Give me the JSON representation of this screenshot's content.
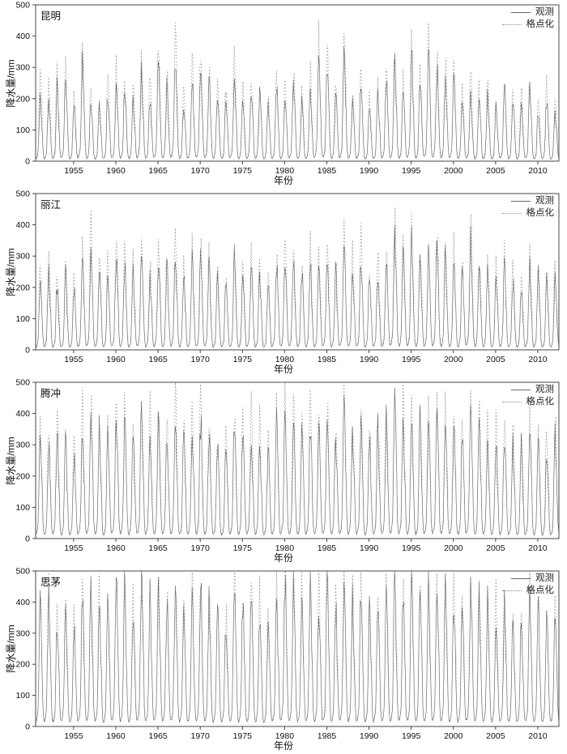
{
  "figure_title": "",
  "labels": {
    "xlabel": "年份",
    "ylabel": "降水量/mm",
    "legend_obs": "观测",
    "legend_grid": "格点化"
  },
  "colors": {
    "observed": "#555555",
    "gridded": "#969696",
    "axis": "#333333",
    "text": "#111111"
  },
  "chart_data": [
    {
      "type": "line",
      "station": "昆明",
      "xlabel": "年份",
      "ylabel": "降水量/mm",
      "ylim": [
        0,
        500
      ],
      "yticks": [
        0,
        100,
        200,
        300,
        400,
        500
      ],
      "xticks": [
        1955,
        1960,
        1965,
        1970,
        1975,
        1980,
        1985,
        1990,
        1995,
        2000,
        2005,
        2010
      ],
      "x_range": [
        1951,
        2013
      ],
      "legend": [
        "观测",
        "格点化"
      ],
      "grid": false,
      "legend_position": "top-right",
      "monthly_profile": [
        0.04,
        0.05,
        0.08,
        0.14,
        0.42,
        0.78,
        1.0,
        0.88,
        0.62,
        0.42,
        0.16,
        0.06
      ],
      "series": [
        {
          "name": "观测",
          "style": "solid",
          "color": "#555555",
          "annual_peaks": [
            210,
            190,
            230,
            265,
            180,
            340,
            205,
            170,
            220,
            250,
            235,
            190,
            280,
            210,
            320,
            235,
            335,
            180,
            260,
            300,
            250,
            220,
            200,
            280,
            190,
            230,
            210,
            170,
            240,
            205,
            260,
            185,
            230,
            330,
            300,
            210,
            340,
            190,
            235,
            165,
            210,
            250,
            300,
            230,
            335,
            260,
            340,
            305,
            280,
            250,
            200,
            230,
            185,
            210,
            165,
            240,
            200,
            185,
            230,
            160,
            205,
            155
          ]
        },
        {
          "name": "格点化",
          "style": "dotted",
          "color": "#969696",
          "annual_peaks": [
            265,
            230,
            280,
            300,
            210,
            395,
            240,
            200,
            260,
            300,
            280,
            230,
            330,
            250,
            380,
            280,
            400,
            220,
            310,
            355,
            300,
            260,
            240,
            330,
            230,
            280,
            250,
            210,
            290,
            250,
            310,
            225,
            280,
            395,
            360,
            255,
            410,
            230,
            285,
            200,
            255,
            300,
            360,
            280,
            400,
            315,
            405,
            365,
            340,
            300,
            245,
            280,
            225,
            255,
            205,
            290,
            245,
            225,
            280,
            200,
            250,
            190
          ]
        }
      ]
    },
    {
      "type": "line",
      "station": "丽江",
      "xlabel": "年份",
      "ylabel": "降水量/mm",
      "ylim": [
        0,
        500
      ],
      "yticks": [
        0,
        100,
        200,
        300,
        400,
        500
      ],
      "xticks": [
        1955,
        1960,
        1965,
        1970,
        1975,
        1980,
        1985,
        1990,
        1995,
        2000,
        2005,
        2010
      ],
      "x_range": [
        1951,
        2013
      ],
      "legend": [
        "观测",
        "格点化"
      ],
      "grid": false,
      "legend_position": "top-right",
      "monthly_profile": [
        0.04,
        0.05,
        0.08,
        0.14,
        0.42,
        0.78,
        1.0,
        0.88,
        0.62,
        0.42,
        0.16,
        0.06
      ],
      "series": [
        {
          "name": "观测",
          "style": "solid",
          "color": "#555555",
          "annual_peaks": [
            230,
            255,
            210,
            240,
            200,
            280,
            320,
            250,
            230,
            300,
            280,
            240,
            310,
            230,
            290,
            260,
            320,
            240,
            280,
            300,
            260,
            230,
            210,
            290,
            240,
            260,
            230,
            200,
            270,
            310,
            290,
            250,
            280,
            260,
            300,
            240,
            320,
            255,
            290,
            230,
            260,
            280,
            385,
            310,
            340,
            290,
            310,
            330,
            300,
            280,
            250,
            380,
            260,
            240,
            230,
            260,
            225,
            205,
            260,
            230,
            210,
            240
          ]
        },
        {
          "name": "格点化",
          "style": "dotted",
          "color": "#969696",
          "annual_peaks": [
            270,
            300,
            250,
            285,
            240,
            330,
            380,
            295,
            275,
            355,
            330,
            285,
            365,
            275,
            345,
            310,
            380,
            285,
            330,
            355,
            310,
            275,
            250,
            345,
            285,
            310,
            275,
            240,
            320,
            365,
            345,
            295,
            330,
            310,
            355,
            285,
            380,
            300,
            345,
            275,
            310,
            330,
            470,
            365,
            400,
            345,
            365,
            390,
            355,
            330,
            295,
            455,
            310,
            285,
            275,
            310,
            265,
            245,
            310,
            275,
            250,
            285
          ]
        }
      ]
    },
    {
      "type": "line",
      "station": "腾冲",
      "xlabel": "年份",
      "ylabel": "降水量/mm",
      "ylim": [
        0,
        500
      ],
      "yticks": [
        0,
        100,
        200,
        300,
        400,
        500
      ],
      "xticks": [
        1955,
        1960,
        1965,
        1970,
        1975,
        1980,
        1985,
        1990,
        1995,
        2000,
        2005,
        2010
      ],
      "x_range": [
        1951,
        2013
      ],
      "legend": [
        "观测",
        "格点化"
      ],
      "grid": false,
      "legend_position": "top-right",
      "monthly_profile": [
        0.04,
        0.05,
        0.08,
        0.14,
        0.42,
        0.78,
        1.0,
        0.88,
        0.62,
        0.42,
        0.16,
        0.06
      ],
      "series": [
        {
          "name": "观测",
          "style": "solid",
          "color": "#555555",
          "annual_peaks": [
            330,
            310,
            350,
            300,
            280,
            360,
            390,
            340,
            320,
            400,
            370,
            330,
            420,
            350,
            380,
            340,
            400,
            320,
            360,
            380,
            340,
            310,
            290,
            370,
            330,
            350,
            320,
            280,
            360,
            400,
            380,
            340,
            370,
            350,
            390,
            330,
            430,
            350,
            380,
            320,
            350,
            370,
            420,
            390,
            400,
            370,
            390,
            410,
            380,
            360,
            330,
            420,
            350,
            330,
            320,
            350,
            310,
            290,
            350,
            320,
            300,
            330
          ]
        },
        {
          "name": "格点化",
          "style": "dotted",
          "color": "#969696",
          "annual_peaks": [
            380,
            360,
            400,
            350,
            320,
            420,
            450,
            395,
            370,
            460,
            430,
            385,
            480,
            405,
            440,
            395,
            460,
            370,
            420,
            440,
            395,
            360,
            335,
            430,
            385,
            405,
            370,
            325,
            420,
            460,
            440,
            395,
            430,
            405,
            450,
            385,
            495,
            405,
            440,
            370,
            405,
            430,
            480,
            450,
            460,
            430,
            450,
            470,
            440,
            420,
            385,
            485,
            405,
            385,
            370,
            405,
            360,
            335,
            405,
            370,
            350,
            385
          ]
        }
      ]
    },
    {
      "type": "line",
      "station": "思茅",
      "xlabel": "年份",
      "ylabel": "降水量/mm",
      "ylim": [
        0,
        500
      ],
      "yticks": [
        0,
        100,
        200,
        300,
        400,
        500
      ],
      "xticks": [
        1955,
        1960,
        1965,
        1970,
        1975,
        1980,
        1985,
        1990,
        1995,
        2000,
        2005,
        2010
      ],
      "x_range": [
        1951,
        2013
      ],
      "legend": [
        "观测",
        "格点化"
      ],
      "grid": false,
      "legend_position": "top-right",
      "monthly_profile": [
        0.04,
        0.05,
        0.08,
        0.14,
        0.42,
        0.78,
        1.0,
        0.88,
        0.62,
        0.42,
        0.16,
        0.06
      ],
      "series": [
        {
          "name": "观测",
          "style": "solid",
          "color": "#555555",
          "annual_peaks": [
            380,
            420,
            360,
            400,
            340,
            430,
            460,
            400,
            380,
            470,
            440,
            390,
            480,
            410,
            450,
            400,
            470,
            380,
            430,
            450,
            400,
            370,
            350,
            440,
            390,
            420,
            380,
            340,
            430,
            470,
            450,
            400,
            440,
            410,
            460,
            390,
            490,
            410,
            450,
            380,
            410,
            440,
            480,
            450,
            460,
            440,
            450,
            480,
            450,
            430,
            390,
            480,
            410,
            390,
            380,
            410,
            370,
            340,
            410,
            380,
            360,
            390
          ]
        },
        {
          "name": "格点化",
          "style": "dotted",
          "color": "#969696",
          "annual_peaks": [
            420,
            460,
            400,
            440,
            375,
            470,
            500,
            440,
            420,
            500,
            480,
            430,
            500,
            450,
            490,
            440,
            500,
            420,
            470,
            490,
            440,
            405,
            385,
            480,
            430,
            460,
            420,
            375,
            470,
            500,
            490,
            440,
            480,
            450,
            500,
            430,
            500,
            450,
            490,
            420,
            450,
            480,
            500,
            490,
            500,
            480,
            490,
            500,
            490,
            470,
            430,
            500,
            450,
            430,
            420,
            450,
            405,
            375,
            450,
            420,
            395,
            430
          ]
        }
      ]
    }
  ]
}
